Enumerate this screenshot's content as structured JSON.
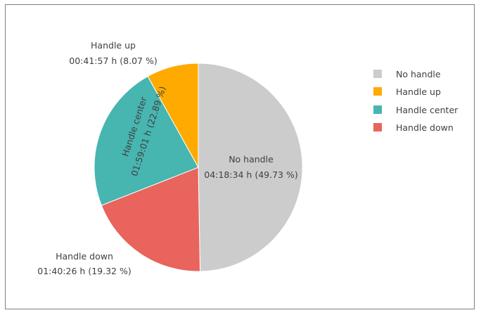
{
  "chart_data": {
    "type": "pie",
    "title": "",
    "legend_position": "right",
    "slices": [
      {
        "name": "No handle",
        "time": "04:18:34 h",
        "percent": 49.73,
        "percent_label": "(49.73 %)",
        "color": "#cccccc"
      },
      {
        "name": "Handle up",
        "time": "00:41:57 h",
        "percent": 8.07,
        "percent_label": "(8.07 %)",
        "color": "#ffaa00"
      },
      {
        "name": "Handle center",
        "time": "01:59:01 h",
        "percent": 22.89,
        "percent_label": "(22.89 %)",
        "color": "#47b5b0"
      },
      {
        "name": "Handle down",
        "time": "01:40:26 h",
        "percent": 19.32,
        "percent_label": "(19.32 %)",
        "color": "#e8645c"
      }
    ]
  }
}
